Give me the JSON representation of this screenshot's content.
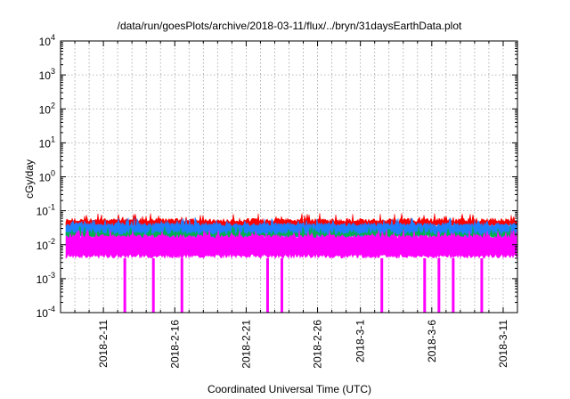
{
  "chart_data": {
    "type": "line",
    "title": "/data/run/goesPlots/archive/2018-03-11/flux/../bryn/31daysEarthData.plot",
    "xlabel": "Coordinated Universal Time (UTC)",
    "ylabel": "cGy/day",
    "yscale": "log",
    "ylim": [
      0.0001,
      10000
    ],
    "xlim": [
      "2018-02-08",
      "2018-03-12"
    ],
    "y_ticks": [
      {
        "value": 0.0001,
        "base": "10",
        "exp": "-4"
      },
      {
        "value": 0.001,
        "base": "10",
        "exp": "-3"
      },
      {
        "value": 0.01,
        "base": "10",
        "exp": "-2"
      },
      {
        "value": 0.1,
        "base": "10",
        "exp": "-1"
      },
      {
        "value": 1,
        "base": "10",
        "exp": "0"
      },
      {
        "value": 10,
        "base": "10",
        "exp": "1"
      },
      {
        "value": 100,
        "base": "10",
        "exp": "2"
      },
      {
        "value": 1000,
        "base": "10",
        "exp": "3"
      },
      {
        "value": 10000,
        "base": "10",
        "exp": "4"
      }
    ],
    "x_ticks": [
      {
        "date": "2018-02-11",
        "label": "2018-2-11"
      },
      {
        "date": "2018-02-16",
        "label": "2018-2-16"
      },
      {
        "date": "2018-02-21",
        "label": "2018-2-21"
      },
      {
        "date": "2018-02-26",
        "label": "2018-2-26"
      },
      {
        "date": "2018-03-01",
        "label": "2018-3-1"
      },
      {
        "date": "2018-03-06",
        "label": "2018-3-6"
      },
      {
        "date": "2018-03-11",
        "label": "2018-3-11"
      }
    ],
    "grid": true,
    "series": [
      {
        "color": "#ff0000",
        "typical_max": 0.06,
        "typical_min": 0.03
      },
      {
        "color": "#1e7fff",
        "typical_max": 0.045,
        "typical_min": 0.015
      },
      {
        "color": "#00b050",
        "typical_max": 0.025,
        "typical_min": 0.015
      },
      {
        "color": "#ff00ff",
        "typical_max": 0.02,
        "typical_min": 0.004,
        "dropouts": [
          "2018-02-12",
          "2018-02-14",
          "2018-02-16",
          "2018-02-22",
          "2018-02-23",
          "2018-03-02",
          "2018-03-05",
          "2018-03-06",
          "2018-03-07",
          "2018-03-09"
        ]
      }
    ]
  }
}
